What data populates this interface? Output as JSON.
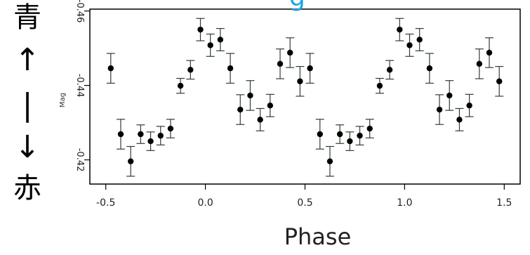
{
  "left_label": {
    "top": "青",
    "arrow_up": "↑",
    "bar": "|",
    "arrow_down": "↓",
    "bottom": "赤"
  },
  "title_fragment": "g",
  "chart_data": {
    "type": "scatter",
    "title": "",
    "xlabel": "Phase",
    "ylabel": "Mag",
    "xlim": [
      -0.58,
      1.58
    ],
    "ylim": [
      -0.4135,
      -0.4605
    ],
    "y_inverted": true,
    "x_ticks": [
      "-0.5",
      "0.0",
      "0.5",
      "1.0",
      "1.5"
    ],
    "x_tick_values": [
      -0.5,
      0.0,
      0.5,
      1.0,
      1.5
    ],
    "y_ticks": [
      "-0.42",
      "-0.44",
      "-0.46"
    ],
    "y_tick_values": [
      -0.42,
      -0.44,
      -0.46
    ],
    "grid": false,
    "colors": {
      "points": "#000000",
      "error_bars": "#2f3f2f",
      "frame": "#000000"
    },
    "series": [
      {
        "x": [
          -0.475,
          -0.425,
          -0.375,
          -0.325,
          -0.275,
          -0.225,
          -0.175,
          -0.125,
          -0.075,
          -0.025,
          0.025,
          0.075,
          0.125,
          0.175,
          0.225,
          0.275,
          0.325,
          0.375,
          0.425,
          0.475,
          0.525,
          0.575,
          0.625,
          0.675,
          0.725,
          0.775,
          0.825,
          0.875,
          0.925,
          0.975,
          1.025,
          1.075,
          1.125,
          1.175,
          1.225,
          1.275,
          1.325,
          1.375,
          1.425,
          1.475
        ],
        "y": [
          -0.4446,
          -0.4269,
          -0.4196,
          -0.4269,
          -0.425,
          -0.4265,
          -0.4284,
          -0.4399,
          -0.4442,
          -0.455,
          -0.4508,
          -0.4523,
          -0.4446,
          -0.4335,
          -0.4373,
          -0.4308,
          -0.4346,
          -0.4458,
          -0.4488,
          -0.4411,
          -0.4446,
          -0.4269,
          -0.4196,
          -0.4269,
          -0.425,
          -0.4265,
          -0.4284,
          -0.4399,
          -0.4442,
          -0.455,
          -0.4508,
          -0.4523,
          -0.4446,
          -0.4335,
          -0.4373,
          -0.4308,
          -0.4346,
          -0.4458,
          -0.4488,
          -0.4411
        ],
        "err": [
          0.004,
          0.004,
          0.004,
          0.0025,
          0.0025,
          0.0025,
          0.0025,
          0.002,
          0.0025,
          0.003,
          0.003,
          0.003,
          0.004,
          0.004,
          0.004,
          0.003,
          0.003,
          0.004,
          0.004,
          0.004,
          0.004,
          0.004,
          0.004,
          0.0025,
          0.0025,
          0.0025,
          0.0025,
          0.002,
          0.0025,
          0.003,
          0.003,
          0.003,
          0.004,
          0.004,
          0.004,
          0.003,
          0.003,
          0.004,
          0.004,
          0.004
        ]
      }
    ]
  }
}
